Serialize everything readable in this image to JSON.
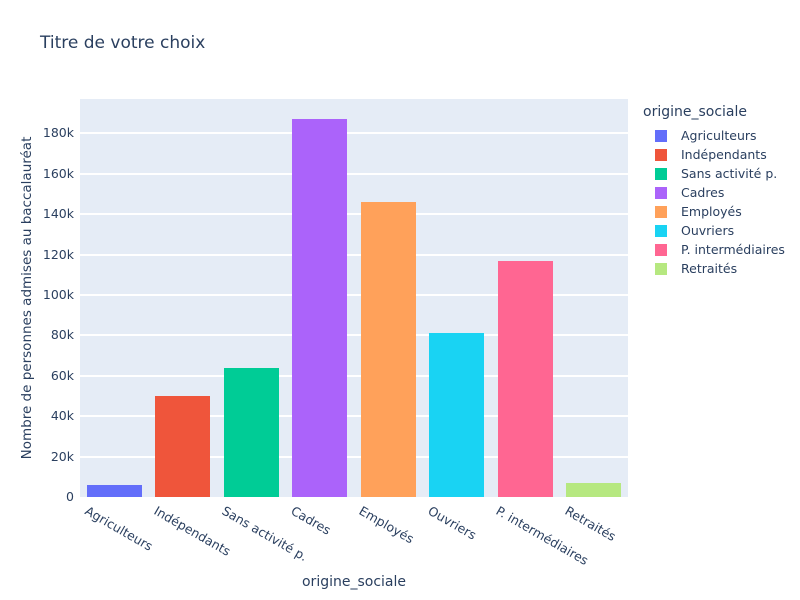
{
  "chart_data": {
    "type": "bar",
    "title": "Titre de votre choix",
    "xlabel": "origine_sociale",
    "ylabel": "Nombre de personnes admises au baccalauréat",
    "legend_title": "origine_sociale",
    "legend_position": "right",
    "grid": true,
    "categories": [
      "Agriculteurs",
      "Indépendants",
      "Sans activité p.",
      "Cadres",
      "Employés",
      "Ouvriers",
      "P. intermédiaires",
      "Retraités"
    ],
    "values": [
      6000,
      50000,
      64000,
      187000,
      146000,
      81000,
      117000,
      7000
    ],
    "colors": [
      "#636efa",
      "#ef553b",
      "#00cc96",
      "#ab63fa",
      "#ffa15a",
      "#19d3f3",
      "#ff6692",
      "#b6e880"
    ],
    "ylim": [
      0,
      197000
    ],
    "yticks": [
      0,
      20000,
      40000,
      60000,
      80000,
      100000,
      120000,
      140000,
      160000,
      180000
    ],
    "ytick_labels": [
      "0",
      "20k",
      "40k",
      "60k",
      "80k",
      "100k",
      "120k",
      "140k",
      "160k",
      "180k"
    ],
    "style": {
      "plot_background": "#e5ecf6",
      "gridline_color": "#ffffff",
      "text_color": "#2a3f5f",
      "paper_background": "#ffffff"
    }
  }
}
